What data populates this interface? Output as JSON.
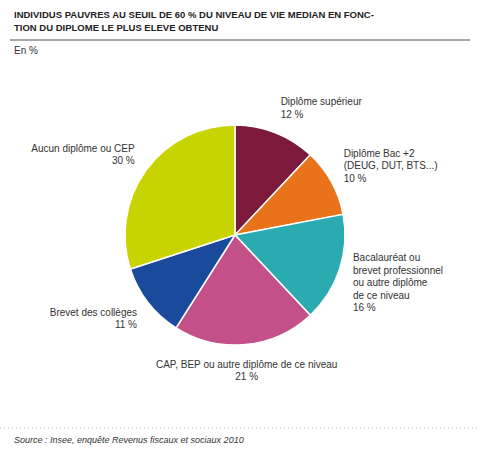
{
  "chart_data": {
    "type": "pie",
    "title": "INDIVIDUS PAUVRES AU SEUIL DE 60 % DU NIVEAU DE VIE MEDIAN EN FONC-\nTION DU DIPLOME LE PLUS ELEVE OBTENU",
    "subtitle": "En %",
    "source": "Source : Insee, enquête Revenus fiscaux et sociaux 2010",
    "categories": [
      "Diplôme supérieur",
      "Diplôme Bac +2\n(DEUG, DUT, BTS...)",
      "Bacalauréat ou\nbrevet professionnel\nou autre diplôme\nde ce niveau",
      "CAP, BEP ou autre diplôme de ce niveau",
      "Brevet des collèges",
      "Aucun diplôme ou CEP"
    ],
    "values": [
      12,
      10,
      16,
      21,
      11,
      30
    ],
    "value_labels": [
      "12 %",
      "10 %",
      "16 %",
      "21 %",
      "11 %",
      "30 %"
    ],
    "data_labels": true,
    "colors": [
      "#7B1A3A",
      "#E8731A",
      "#2AABB0",
      "#C4508A",
      "#1A4A9C",
      "#C8D400"
    ]
  }
}
